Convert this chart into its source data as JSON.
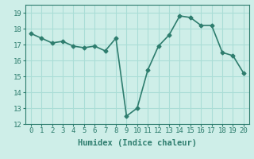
{
  "x": [
    0,
    1,
    2,
    3,
    4,
    5,
    6,
    7,
    8,
    9,
    10,
    11,
    12,
    13,
    14,
    15,
    16,
    17,
    18,
    19,
    20
  ],
  "y": [
    17.7,
    17.4,
    17.1,
    17.2,
    16.9,
    16.8,
    16.9,
    16.6,
    17.4,
    12.5,
    13.0,
    15.4,
    16.9,
    17.6,
    18.8,
    18.7,
    18.2,
    18.2,
    16.5,
    16.3,
    15.2
  ],
  "line_color": "#2e7d6e",
  "marker": "D",
  "marker_size": 2.5,
  "linewidth": 1.2,
  "xlabel": "Humidex (Indice chaleur)",
  "xlim": [
    -0.5,
    20.5
  ],
  "ylim": [
    12,
    19.5
  ],
  "yticks": [
    12,
    13,
    14,
    15,
    16,
    17,
    18,
    19
  ],
  "xticks": [
    0,
    1,
    2,
    3,
    4,
    5,
    6,
    7,
    8,
    9,
    10,
    11,
    12,
    13,
    14,
    15,
    16,
    17,
    18,
    19,
    20
  ],
  "bg_color": "#ceeee8",
  "grid_color": "#aaddd6",
  "tick_color": "#2e7d6e",
  "label_color": "#2e7d6e",
  "font_size_xlabel": 7.5,
  "font_size_ticks": 6.5
}
